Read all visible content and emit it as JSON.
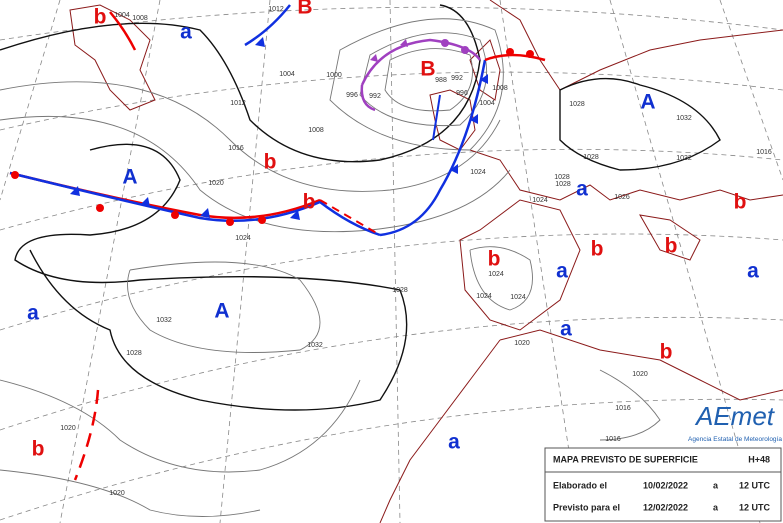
{
  "map": {
    "pressure_centers": [
      "b",
      "a",
      "B",
      "B",
      "A",
      "A",
      "b",
      "b",
      "A",
      "a",
      "b",
      "b",
      "b",
      "a",
      "a",
      "b",
      "a",
      "a",
      "b",
      "b",
      "a"
    ],
    "isobar_labels": [
      "1008",
      "1004",
      "1012",
      "1012",
      "1004",
      "1008",
      "1000",
      "996",
      "992",
      "988",
      "992",
      "996",
      "1004",
      "1008",
      "1016",
      "1020",
      "1024",
      "1028",
      "1032",
      "1032",
      "1028",
      "1020",
      "1020",
      "1028",
      "1032",
      "1028",
      "1028",
      "1028",
      "1032",
      "1026",
      "1024",
      "1024",
      "1024",
      "1024",
      "1020",
      "1020",
      "1016",
      "1016",
      "1024",
      "1016"
    ]
  },
  "logo": {
    "name": "AEmet",
    "subtitle": "Agencia Estatal de Meteorología"
  },
  "legend": {
    "title": "MAPA PREVISTO DE SUPERFICIE",
    "lead": "H+48",
    "rows": [
      [
        "Elaborado el",
        "10/02/2022",
        "a",
        "12 UTC"
      ],
      [
        "Previsto para el",
        "12/02/2022",
        "a",
        "12 UTC"
      ]
    ]
  }
}
